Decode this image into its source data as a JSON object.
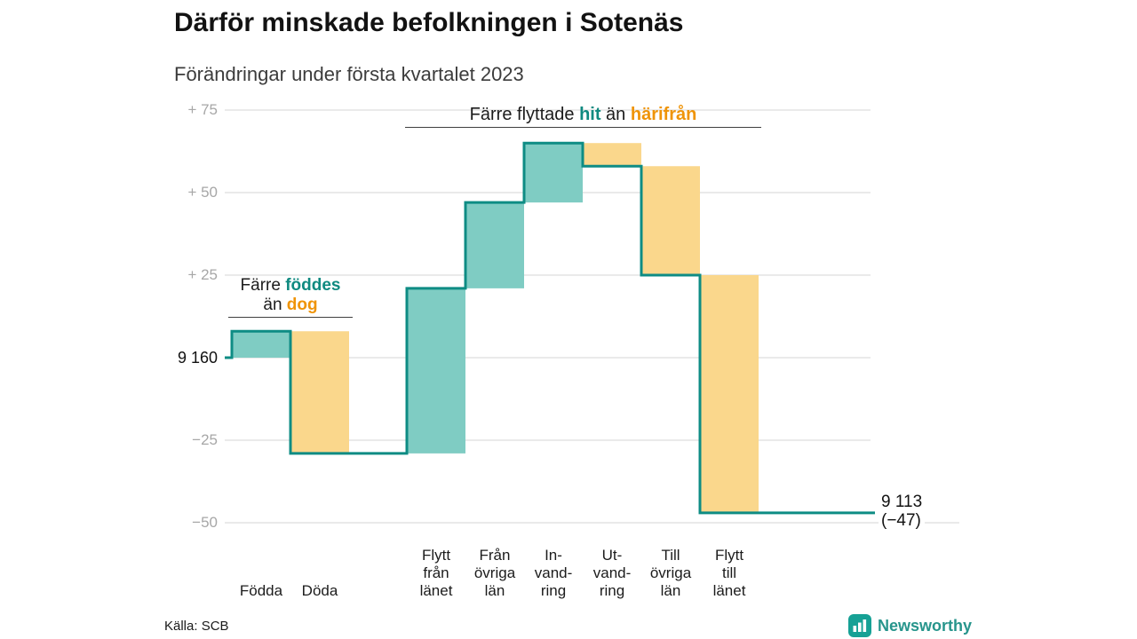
{
  "header": {
    "title": "Därför minskade befolkningen i Sotenäs",
    "subtitle": "Förändringar under första kvartalet 2023"
  },
  "chart_data": {
    "type": "bar",
    "subtype": "waterfall",
    "title": "Därför minskade befolkningen i Sotenäs",
    "subtitle": "Förändringar under första kvartalet 2023",
    "ylim": [
      -50,
      75
    ],
    "grid": true,
    "y_ticks": [
      {
        "value": 75,
        "label": "+ 75",
        "major": false
      },
      {
        "value": 50,
        "label": "+ 50",
        "major": false
      },
      {
        "value": 25,
        "label": "+ 25",
        "major": false
      },
      {
        "value": 0,
        "label": "9 160",
        "major": true
      },
      {
        "value": -25,
        "label": "−25",
        "major": false
      },
      {
        "value": -50,
        "label": "−50",
        "major": false
      }
    ],
    "start": {
      "label": "9 160",
      "value": 0
    },
    "end": {
      "label": "9 113",
      "delta_label": "(−47)",
      "value": -47
    },
    "bars": [
      {
        "id": "fodda",
        "label_lines": [
          "Födda"
        ],
        "from": 0,
        "to": 8,
        "kind": "increase"
      },
      {
        "id": "doda",
        "label_lines": [
          "Döda"
        ],
        "from": 8,
        "to": -29,
        "kind": "decrease"
      },
      {
        "id": "flytt-fran-lanet",
        "label_lines": [
          "Flytt",
          "från",
          "länet"
        ],
        "from": -29,
        "to": 21,
        "kind": "increase"
      },
      {
        "id": "fran-ovriga-lan",
        "label_lines": [
          "Från",
          "övriga",
          "län"
        ],
        "from": 21,
        "to": 47,
        "kind": "increase"
      },
      {
        "id": "invandring",
        "label_lines": [
          "In-",
          "vand-",
          "ring"
        ],
        "from": 47,
        "to": 65,
        "kind": "increase"
      },
      {
        "id": "utvandring",
        "label_lines": [
          "Ut-",
          "vand-",
          "ring"
        ],
        "from": 65,
        "to": 58,
        "kind": "decrease"
      },
      {
        "id": "till-ovriga-lan",
        "label_lines": [
          "Till",
          "övriga",
          "län"
        ],
        "from": 58,
        "to": 25,
        "kind": "decrease"
      },
      {
        "id": "flytt-till-lanet",
        "label_lines": [
          "Flytt",
          "till",
          "länet"
        ],
        "from": 25,
        "to": -47,
        "kind": "decrease"
      }
    ],
    "gap_after_index": 1,
    "colors": {
      "increase_fill": "#7fccc3",
      "decrease_fill": "#fad78c",
      "line": "#0e8c84",
      "grid": "#e4e4e4",
      "tick_text": "#a7a7a7",
      "major_text": "#111111",
      "accent_teal": "#0f8a80",
      "accent_orange": "#ef9408"
    }
  },
  "annotations": {
    "births": {
      "pre": "Färre ",
      "highlight_teal": "föddes",
      "line2_pre": "än ",
      "highlight_orange": "dog"
    },
    "moves": {
      "pre": "Färre flyttade ",
      "highlight_teal": "hit",
      "mid": " än ",
      "highlight_orange": "härifrån"
    }
  },
  "footer": {
    "source": "Källa: SCB",
    "brand": "Newsworthy"
  }
}
